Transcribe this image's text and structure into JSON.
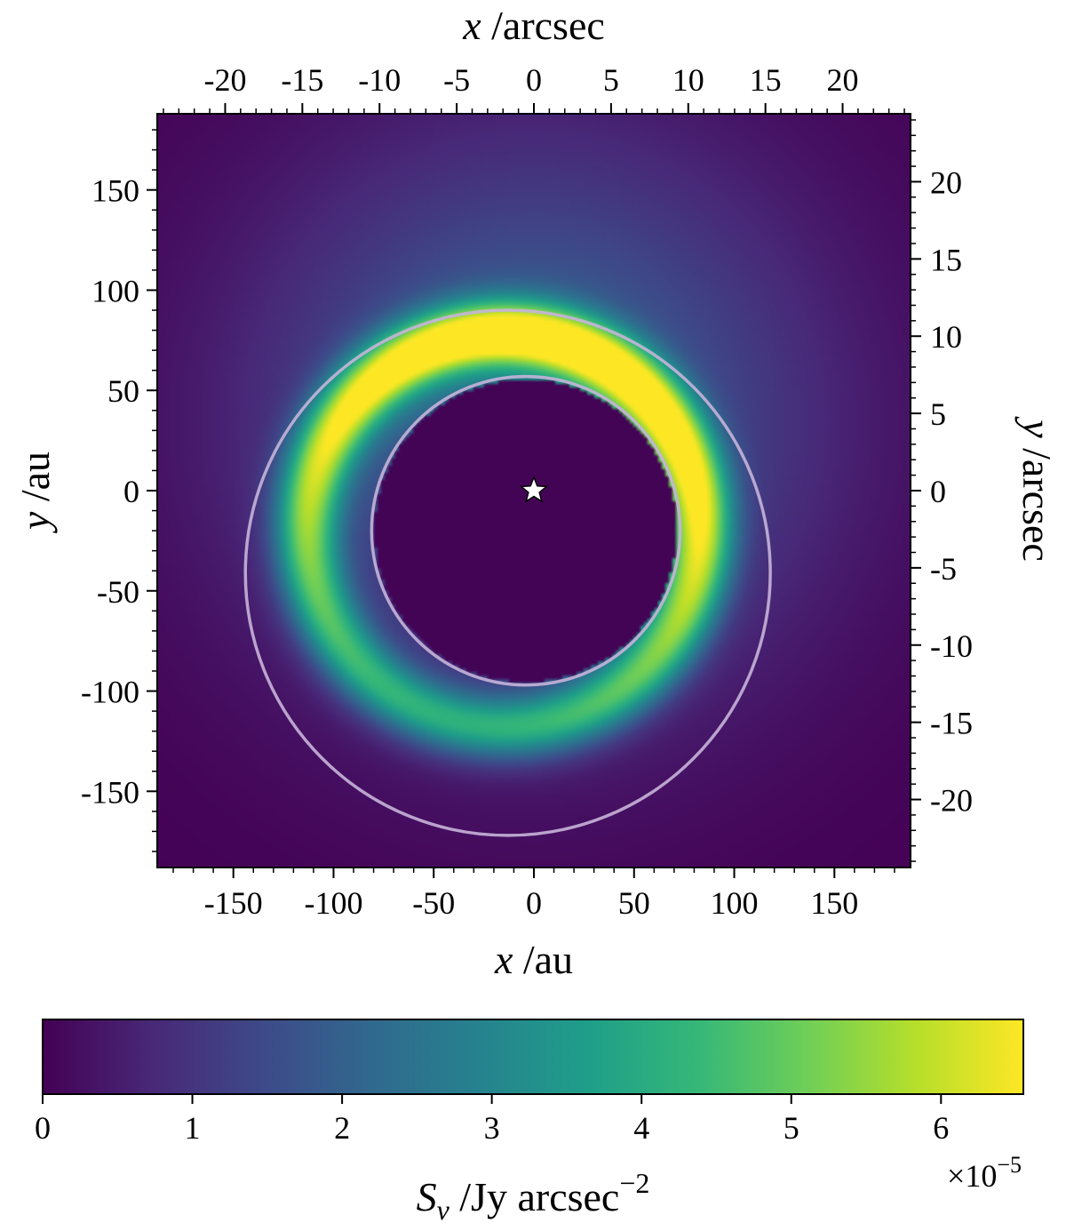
{
  "chart_data": {
    "type": "heatmap",
    "title": "",
    "colormap": "viridis",
    "colormap_stops": [
      "#440154",
      "#482878",
      "#3e4989",
      "#31688e",
      "#26828e",
      "#1f9e89",
      "#35b779",
      "#6ece58",
      "#b5de2b",
      "#fde725"
    ],
    "axes": {
      "bottom": {
        "label_var": "x",
        "label_unit": " /au",
        "range": [
          -188,
          188
        ],
        "ticks": [
          -150,
          -100,
          -50,
          0,
          50,
          100,
          150
        ],
        "tick_labels": [
          "-150",
          "-100",
          "-50",
          "0",
          "50",
          "100",
          "150"
        ]
      },
      "left": {
        "label_var": "y",
        "label_unit": " /au",
        "range": [
          -188,
          188
        ],
        "ticks": [
          -150,
          -100,
          -50,
          0,
          50,
          100,
          150
        ],
        "tick_labels": [
          "-150",
          "-100",
          "-50",
          "0",
          "50",
          "100",
          "150"
        ]
      },
      "top": {
        "label_var": "x",
        "label_unit": " /arcsec",
        "range": [
          -24.4,
          24.4
        ],
        "ticks": [
          -20,
          -15,
          -10,
          -5,
          0,
          5,
          10,
          15,
          20
        ],
        "tick_labels": [
          "-20",
          "-15",
          "-10",
          "-5",
          "0",
          "5",
          "10",
          "15",
          "20"
        ]
      },
      "right": {
        "label_var": "y",
        "label_unit": " /arcsec",
        "range": [
          -24.4,
          24.4
        ],
        "ticks": [
          -20,
          -15,
          -10,
          -5,
          0,
          5,
          10,
          15,
          20
        ],
        "tick_labels": [
          "-20",
          "-15",
          "-10",
          "-5",
          "0",
          "5",
          "10",
          "15",
          "20"
        ]
      }
    },
    "star": {
      "x": 0,
      "y": 0,
      "color": "#ffffff"
    },
    "ring": {
      "center": [
        -15,
        -20
      ],
      "radius": 98,
      "width": 16,
      "peak_angle_deg": 75,
      "peak_value": 6.5,
      "min_value": 3.6,
      "halo_center": [
        0,
        35
      ],
      "halo_radius": 175,
      "halo_peak": 2.2
    },
    "contours": [
      {
        "name": "inner",
        "cx": -4,
        "cy": -20,
        "r": 77,
        "color": "#c7b4d9"
      },
      {
        "name": "outer",
        "cx": -13,
        "cy": -41,
        "r": 131,
        "color": "#c7b4d9"
      }
    ],
    "colorbar": {
      "range": [
        0,
        6.55
      ],
      "ticks": [
        0,
        1,
        2,
        3,
        4,
        5,
        6
      ],
      "tick_labels": [
        "0",
        "1",
        "2",
        "3",
        "4",
        "5",
        "6"
      ],
      "multiplier_base": "×10",
      "multiplier_exp": "−5",
      "label_var": "S",
      "label_sub": "ν",
      "label_unit": " /Jy arcsec",
      "label_exp": "−2"
    }
  }
}
